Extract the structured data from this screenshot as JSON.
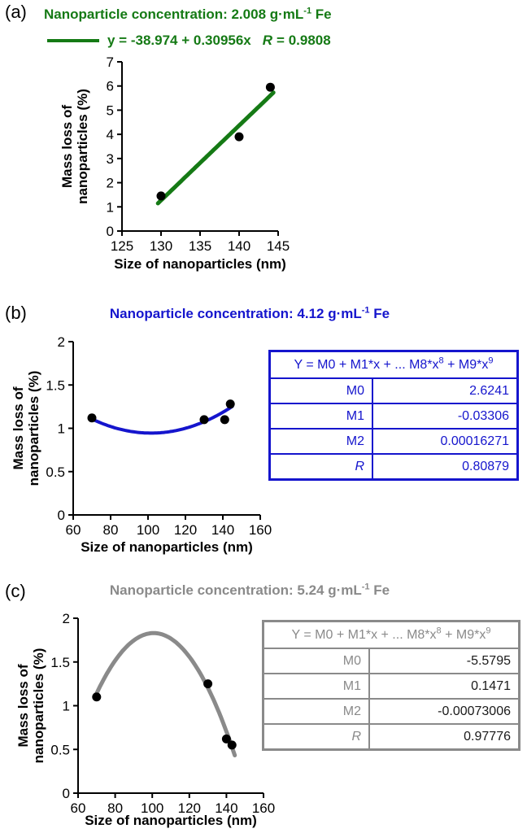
{
  "colors": {
    "green": "#157a15",
    "blue": "#1515cd",
    "gray": "#8a8a8a",
    "points": "#000000"
  },
  "panels": {
    "a": {
      "label": "(a)",
      "title": {
        "pre": "Nanoparticle concentration: 2.008 g·mL",
        "sup": "-1",
        "post": " Fe"
      },
      "legend": {
        "eq": "y = -38.974 + 0.30956x",
        "r_label": "R",
        "r_value": "= 0.9808"
      }
    },
    "b": {
      "label": "(b)",
      "title": {
        "pre": "Nanoparticle concentration: 4.12 g·mL",
        "sup": "-1",
        "post": " Fe"
      }
    },
    "c": {
      "label": "(c)",
      "title": {
        "pre": "Nanoparticle concentration: 5.24 g·mL",
        "sup": "-1",
        "post": " Fe"
      }
    }
  },
  "tables": {
    "b": {
      "header": {
        "pre": "Y = M0 + M1*x + ... M8*x",
        "sup1": "8",
        "mid": " + M9*x",
        "sup2": "9"
      },
      "rows": [
        {
          "label": "M0",
          "value": "2.6241"
        },
        {
          "label": "M1",
          "value": "-0.03306"
        },
        {
          "label": "M2",
          "value": "0.00016271"
        },
        {
          "label": "R",
          "value": "0.80879"
        }
      ]
    },
    "c": {
      "header": {
        "pre": "Y = M0 + M1*x + ... M8*x",
        "sup1": "8",
        "mid": " + M9*x",
        "sup2": "9"
      },
      "rows": [
        {
          "label": "M0",
          "value": "-5.5795"
        },
        {
          "label": "M1",
          "value": "0.1471"
        },
        {
          "label": "M2",
          "value": "-0.00073006"
        },
        {
          "label": "R",
          "value": "0.97776"
        }
      ]
    }
  },
  "chart_data": [
    {
      "id": "a",
      "panel": "(a)",
      "type": "scatter",
      "title": "Nanoparticle concentration: 2.008 g·mL⁻¹ Fe",
      "xlabel": "Size of nanoparticles (nm)",
      "ylabel": "Mass loss of nanoparticles (%)",
      "ylabel_lines": [
        "Mass loss of",
        "nanoparticles (%)"
      ],
      "xlim": [
        125,
        145
      ],
      "ylim": [
        0,
        7
      ],
      "xticks": [
        125,
        130,
        135,
        140,
        145
      ],
      "yticks": [
        0,
        1,
        2,
        3,
        4,
        5,
        6,
        7
      ],
      "points": [
        [
          130,
          1.45
        ],
        [
          140,
          3.9
        ],
        [
          144,
          5.95
        ]
      ],
      "fit": {
        "kind": "linear",
        "equation": "y = -38.974 + 0.30956x",
        "R": 0.9808,
        "coeffs": [
          -38.974,
          0.30956
        ],
        "range": [
          129.6,
          144.4
        ]
      },
      "color": "#157a15",
      "point_color": "#000000",
      "curve_width": 5
    },
    {
      "id": "b",
      "panel": "(b)",
      "type": "scatter",
      "title": "Nanoparticle concentration: 4.12 g·mL⁻¹ Fe",
      "xlabel": "Size of nanoparticles (nm)",
      "ylabel": "Mass loss of nanoparticles (%)",
      "ylabel_lines": [
        "Mass loss of",
        "nanoparticles (%)"
      ],
      "xlim": [
        60,
        160
      ],
      "ylim": [
        0,
        2
      ],
      "xticks": [
        60,
        80,
        100,
        120,
        140,
        160
      ],
      "yticks": [
        0,
        0.5,
        1,
        1.5,
        2
      ],
      "points": [
        [
          70,
          1.12
        ],
        [
          130,
          1.1
        ],
        [
          141,
          1.1
        ],
        [
          144,
          1.28
        ]
      ],
      "fit": {
        "kind": "poly2",
        "R": 0.80879,
        "coeffs": [
          2.6241,
          -0.03306,
          0.00016271
        ],
        "range": [
          70,
          145
        ]
      },
      "color": "#1515cd",
      "point_color": "#000000",
      "curve_width": 4
    },
    {
      "id": "c",
      "panel": "(c)",
      "type": "scatter",
      "title": "Nanoparticle concentration: 5.24 g·mL⁻¹ Fe",
      "xlabel": "Size of nanoparticles (nm)",
      "ylabel": "Mass loss of nanoparticles (%)",
      "ylabel_lines": [
        "Mass loss of",
        "nanoparticles (%)"
      ],
      "xlim": [
        60,
        160
      ],
      "ylim": [
        0,
        2
      ],
      "xticks": [
        60,
        80,
        100,
        120,
        140,
        160
      ],
      "yticks": [
        0,
        0.5,
        1,
        1.5,
        2
      ],
      "points": [
        [
          70,
          1.1
        ],
        [
          130,
          1.25
        ],
        [
          140,
          0.62
        ],
        [
          143,
          0.55
        ]
      ],
      "fit": {
        "kind": "poly2",
        "R": 0.97776,
        "coeffs": [
          -5.5795,
          0.1471,
          -0.00073006
        ],
        "range": [
          70,
          144.5
        ]
      },
      "color": "#8a8a8a",
      "point_color": "#000000",
      "curve_width": 5
    }
  ]
}
